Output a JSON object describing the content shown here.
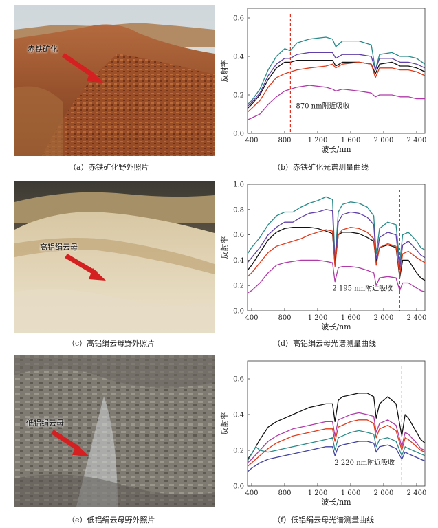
{
  "figure": {
    "panels": [
      {
        "id": "a",
        "caption": "（a）赤铁矿化野外照片",
        "photo_label": "赤铁矿化"
      },
      {
        "id": "b",
        "caption": "（b）赤铁矿化光谱测量曲线"
      },
      {
        "id": "c",
        "caption": "（c）高铝绢云母野外照片",
        "photo_label": "高铝绢云母"
      },
      {
        "id": "d",
        "caption": "（d）高铝绢云母光谱测量曲线"
      },
      {
        "id": "e",
        "caption": "（e）低铝绢云母野外照片",
        "photo_label": "低铝绢云母"
      },
      {
        "id": "f",
        "caption": "（f）低铝绢云母光谱测量曲线"
      }
    ],
    "colors": {
      "arrow": "#d42020",
      "marker": "#e03020"
    }
  },
  "chart_data": [
    {
      "type": "line",
      "xlabel": "波长/nm",
      "ylabel": "反射率",
      "xlim": [
        350,
        2500
      ],
      "ylim": [
        0,
        0.65
      ],
      "xticks": [
        400,
        800,
        1200,
        1600,
        2000,
        2400
      ],
      "xtick_labels": [
        "400",
        "800",
        "1 200",
        "1 600",
        "2 000",
        "2 400"
      ],
      "yticks": [
        0,
        0.2,
        0.4,
        0.6
      ],
      "ytick_labels": [
        "0.0",
        "0.2",
        "0.4",
        "0.6"
      ],
      "marker_x": 870,
      "annotation": "870 nm附近吸收",
      "series": [
        {
          "color": "#2a8a8a",
          "x": [
            350,
            400,
            500,
            600,
            700,
            800,
            870,
            950,
            1100,
            1300,
            1380,
            1420,
            1500,
            1700,
            1850,
            1900,
            1950,
            2100,
            2200,
            2300,
            2400,
            2500
          ],
          "y": [
            0.15,
            0.17,
            0.23,
            0.33,
            0.4,
            0.44,
            0.43,
            0.47,
            0.49,
            0.5,
            0.49,
            0.45,
            0.48,
            0.48,
            0.46,
            0.33,
            0.41,
            0.42,
            0.4,
            0.4,
            0.39,
            0.36
          ]
        },
        {
          "color": "#6040a8",
          "x": [
            350,
            400,
            500,
            600,
            700,
            800,
            870,
            950,
            1100,
            1300,
            1380,
            1420,
            1500,
            1700,
            1850,
            1900,
            1950,
            2100,
            2200,
            2300,
            2400,
            2500
          ],
          "y": [
            0.14,
            0.16,
            0.21,
            0.3,
            0.36,
            0.39,
            0.39,
            0.41,
            0.42,
            0.42,
            0.42,
            0.39,
            0.41,
            0.41,
            0.4,
            0.33,
            0.39,
            0.39,
            0.37,
            0.37,
            0.36,
            0.34
          ]
        },
        {
          "color": "#111111",
          "x": [
            350,
            400,
            500,
            600,
            700,
            800,
            870,
            950,
            1100,
            1300,
            1380,
            1420,
            1500,
            1700,
            1850,
            1900,
            1950,
            2100,
            2200,
            2300,
            2400,
            2500
          ],
          "y": [
            0.13,
            0.15,
            0.2,
            0.28,
            0.34,
            0.37,
            0.37,
            0.38,
            0.38,
            0.38,
            0.38,
            0.35,
            0.37,
            0.37,
            0.36,
            0.31,
            0.36,
            0.37,
            0.35,
            0.35,
            0.34,
            0.32
          ]
        },
        {
          "color": "#e03a1a",
          "x": [
            350,
            400,
            500,
            600,
            700,
            800,
            870,
            950,
            1100,
            1300,
            1380,
            1420,
            1500,
            1700,
            1850,
            1900,
            1950,
            2100,
            2200,
            2300,
            2400,
            2500
          ],
          "y": [
            0.11,
            0.13,
            0.17,
            0.24,
            0.29,
            0.31,
            0.32,
            0.33,
            0.34,
            0.35,
            0.36,
            0.34,
            0.36,
            0.37,
            0.36,
            0.29,
            0.34,
            0.34,
            0.33,
            0.33,
            0.32,
            0.3
          ]
        },
        {
          "color": "#b03aa8",
          "x": [
            350,
            400,
            500,
            600,
            700,
            800,
            870,
            950,
            1100,
            1300,
            1380,
            1420,
            1500,
            1700,
            1850,
            1900,
            1950,
            2100,
            2200,
            2300,
            2400,
            2500
          ],
          "y": [
            0.07,
            0.08,
            0.1,
            0.15,
            0.19,
            0.22,
            0.23,
            0.24,
            0.25,
            0.24,
            0.23,
            0.22,
            0.23,
            0.22,
            0.21,
            0.19,
            0.2,
            0.2,
            0.19,
            0.19,
            0.18,
            0.18
          ]
        }
      ]
    },
    {
      "type": "line",
      "xlabel": "波长/nm",
      "ylabel": "反射率",
      "xlim": [
        350,
        2500
      ],
      "ylim": [
        0,
        1.0
      ],
      "xticks": [
        400,
        800,
        1200,
        1600,
        2000,
        2400
      ],
      "xtick_labels": [
        "400",
        "800",
        "1 200",
        "1 600",
        "2 000",
        "2 400"
      ],
      "yticks": [
        0,
        0.2,
        0.4,
        0.6,
        0.8,
        1.0
      ],
      "ytick_labels": [
        "0.0",
        "0.2",
        "0.4",
        "0.6",
        "0.8",
        "1.0"
      ],
      "marker_x": 2195,
      "annotation": "2 195 nm附近吸收",
      "series": [
        {
          "color": "#2a8a8a",
          "x": [
            350,
            400,
            500,
            600,
            700,
            800,
            900,
            1000,
            1100,
            1200,
            1300,
            1380,
            1410,
            1450,
            1500,
            1600,
            1700,
            1800,
            1880,
            1910,
            1950,
            2050,
            2150,
            2195,
            2230,
            2300,
            2400,
            2450,
            2500
          ],
          "y": [
            0.45,
            0.5,
            0.58,
            0.68,
            0.75,
            0.78,
            0.78,
            0.82,
            0.85,
            0.87,
            0.9,
            0.88,
            0.4,
            0.78,
            0.84,
            0.86,
            0.85,
            0.82,
            0.75,
            0.45,
            0.65,
            0.7,
            0.68,
            0.38,
            0.6,
            0.62,
            0.55,
            0.5,
            0.48
          ]
        },
        {
          "color": "#6040a8",
          "x": [
            350,
            400,
            500,
            600,
            700,
            800,
            900,
            1000,
            1100,
            1200,
            1300,
            1380,
            1410,
            1450,
            1500,
            1600,
            1700,
            1800,
            1880,
            1910,
            1950,
            2050,
            2150,
            2195,
            2230,
            2300,
            2400,
            2450,
            2500
          ],
          "y": [
            0.38,
            0.42,
            0.5,
            0.6,
            0.66,
            0.7,
            0.7,
            0.74,
            0.77,
            0.78,
            0.8,
            0.79,
            0.36,
            0.7,
            0.76,
            0.78,
            0.77,
            0.74,
            0.68,
            0.4,
            0.58,
            0.62,
            0.6,
            0.33,
            0.52,
            0.55,
            0.48,
            0.44,
            0.42
          ]
        },
        {
          "color": "#111111",
          "x": [
            350,
            400,
            500,
            600,
            700,
            800,
            900,
            1000,
            1100,
            1200,
            1300,
            1380,
            1410,
            1450,
            1500,
            1600,
            1700,
            1800,
            1880,
            1910,
            1950,
            2050,
            2150,
            2195,
            2230,
            2300,
            2400,
            2450,
            2500
          ],
          "y": [
            0.32,
            0.36,
            0.46,
            0.56,
            0.62,
            0.65,
            0.66,
            0.66,
            0.66,
            0.65,
            0.63,
            0.61,
            0.36,
            0.6,
            0.62,
            0.62,
            0.61,
            0.58,
            0.55,
            0.38,
            0.5,
            0.52,
            0.5,
            0.26,
            0.4,
            0.4,
            0.3,
            0.26,
            0.24
          ]
        },
        {
          "color": "#e03a1a",
          "x": [
            350,
            400,
            500,
            600,
            700,
            800,
            900,
            1000,
            1100,
            1200,
            1300,
            1380,
            1410,
            1450,
            1500,
            1600,
            1700,
            1800,
            1880,
            1910,
            1950,
            2050,
            2150,
            2195,
            2230,
            2300,
            2400,
            2450,
            2500
          ],
          "y": [
            0.27,
            0.3,
            0.38,
            0.46,
            0.51,
            0.53,
            0.55,
            0.57,
            0.6,
            0.62,
            0.64,
            0.63,
            0.35,
            0.6,
            0.64,
            0.66,
            0.65,
            0.62,
            0.57,
            0.36,
            0.5,
            0.53,
            0.51,
            0.28,
            0.45,
            0.47,
            0.42,
            0.4,
            0.38
          ]
        },
        {
          "color": "#b03aa8",
          "x": [
            350,
            400,
            500,
            600,
            700,
            800,
            900,
            1000,
            1100,
            1200,
            1300,
            1380,
            1410,
            1450,
            1500,
            1600,
            1700,
            1800,
            1880,
            1910,
            1950,
            2050,
            2150,
            2195,
            2230,
            2300,
            2400,
            2450,
            2500
          ],
          "y": [
            0.14,
            0.16,
            0.22,
            0.3,
            0.36,
            0.38,
            0.39,
            0.4,
            0.4,
            0.4,
            0.39,
            0.38,
            0.23,
            0.34,
            0.35,
            0.35,
            0.34,
            0.32,
            0.3,
            0.2,
            0.26,
            0.27,
            0.26,
            0.16,
            0.22,
            0.22,
            0.18,
            0.16,
            0.15
          ]
        }
      ]
    },
    {
      "type": "line",
      "xlabel": "波长/nm",
      "ylabel": "反射率",
      "xlim": [
        350,
        2500
      ],
      "ylim": [
        0,
        0.7
      ],
      "xticks": [
        400,
        800,
        1200,
        1600,
        2000,
        2400
      ],
      "xtick_labels": [
        "400",
        "800",
        "1 200",
        "1 600",
        "2 000",
        "2 400"
      ],
      "yticks": [
        0,
        0.2,
        0.4,
        0.6
      ],
      "ytick_labels": [
        "0.0",
        "0.2",
        "0.4",
        "0.6"
      ],
      "marker_x": 2220,
      "annotation": "2 220 nm附近吸收",
      "series": [
        {
          "color": "#111111",
          "x": [
            350,
            400,
            500,
            600,
            700,
            800,
            900,
            1000,
            1100,
            1200,
            1300,
            1380,
            1410,
            1450,
            1500,
            1600,
            1700,
            1800,
            1880,
            1910,
            1950,
            2050,
            2150,
            2220,
            2260,
            2300,
            2400,
            2450,
            2500
          ],
          "y": [
            0.15,
            0.18,
            0.26,
            0.33,
            0.36,
            0.38,
            0.4,
            0.42,
            0.44,
            0.45,
            0.46,
            0.46,
            0.36,
            0.48,
            0.5,
            0.51,
            0.52,
            0.52,
            0.5,
            0.38,
            0.46,
            0.5,
            0.46,
            0.28,
            0.4,
            0.38,
            0.3,
            0.26,
            0.24
          ]
        },
        {
          "color": "#b03aa8",
          "x": [
            350,
            400,
            500,
            600,
            700,
            800,
            900,
            1000,
            1100,
            1200,
            1300,
            1380,
            1410,
            1450,
            1500,
            1600,
            1700,
            1800,
            1880,
            1910,
            1950,
            2050,
            2150,
            2220,
            2260,
            2300,
            2400,
            2450,
            2500
          ],
          "y": [
            0.13,
            0.15,
            0.2,
            0.25,
            0.28,
            0.3,
            0.32,
            0.33,
            0.34,
            0.35,
            0.36,
            0.36,
            0.28,
            0.37,
            0.38,
            0.4,
            0.41,
            0.4,
            0.39,
            0.3,
            0.35,
            0.37,
            0.34,
            0.22,
            0.3,
            0.29,
            0.24,
            0.21,
            0.2
          ]
        },
        {
          "color": "#e03a1a",
          "x": [
            350,
            400,
            500,
            600,
            700,
            800,
            900,
            1000,
            1100,
            1200,
            1300,
            1380,
            1410,
            1450,
            1500,
            1600,
            1700,
            1800,
            1880,
            1910,
            1950,
            2050,
            2150,
            2220,
            2260,
            2300,
            2400,
            2450,
            2500
          ],
          "y": [
            0.11,
            0.13,
            0.17,
            0.21,
            0.24,
            0.26,
            0.28,
            0.29,
            0.3,
            0.31,
            0.32,
            0.32,
            0.25,
            0.33,
            0.34,
            0.36,
            0.37,
            0.37,
            0.35,
            0.27,
            0.32,
            0.34,
            0.31,
            0.2,
            0.27,
            0.26,
            0.22,
            0.2,
            0.19
          ]
        },
        {
          "color": "#2a8a8a",
          "x": [
            350,
            400,
            450,
            500,
            600,
            700,
            800,
            900,
            1000,
            1100,
            1200,
            1300,
            1380,
            1410,
            1450,
            1500,
            1600,
            1700,
            1800,
            1880,
            1910,
            1950,
            2050,
            2150,
            2220,
            2260,
            2300,
            2400,
            2450,
            2500
          ],
          "y": [
            0.14,
            0.18,
            0.22,
            0.2,
            0.19,
            0.2,
            0.21,
            0.22,
            0.23,
            0.24,
            0.25,
            0.26,
            0.27,
            0.2,
            0.27,
            0.28,
            0.3,
            0.31,
            0.3,
            0.29,
            0.22,
            0.26,
            0.27,
            0.25,
            0.17,
            0.22,
            0.21,
            0.19,
            0.18,
            0.17
          ]
        },
        {
          "color": "#4040a0",
          "x": [
            350,
            400,
            500,
            600,
            700,
            800,
            900,
            1000,
            1100,
            1200,
            1300,
            1380,
            1410,
            1450,
            1500,
            1600,
            1700,
            1800,
            1880,
            1910,
            1950,
            2050,
            2150,
            2220,
            2260,
            2300,
            2400,
            2450,
            2500
          ],
          "y": [
            0.08,
            0.1,
            0.13,
            0.15,
            0.16,
            0.17,
            0.18,
            0.19,
            0.2,
            0.21,
            0.22,
            0.22,
            0.17,
            0.22,
            0.23,
            0.24,
            0.25,
            0.25,
            0.24,
            0.19,
            0.22,
            0.23,
            0.21,
            0.15,
            0.19,
            0.18,
            0.16,
            0.15,
            0.14
          ]
        }
      ]
    }
  ]
}
